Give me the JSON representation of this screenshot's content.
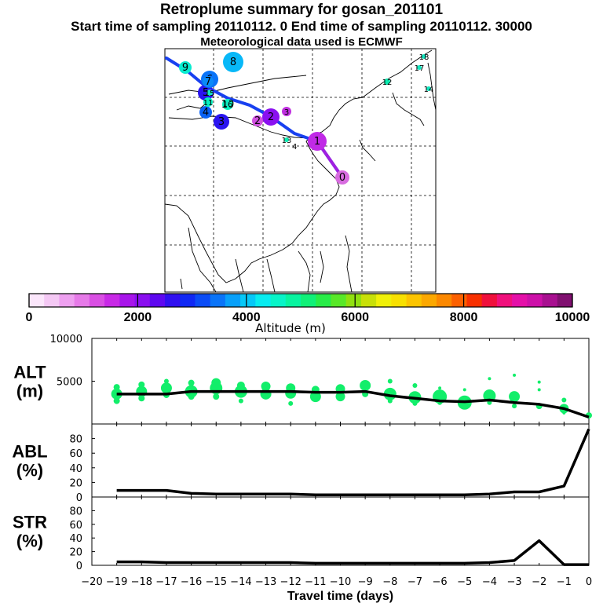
{
  "header": {
    "title": "Retroplume summary for gosan_201101",
    "subtitle": "Start time of sampling 20110112.    0     End time of sampling 20110112. 30000",
    "met": "Meteorological data used is ECMWF"
  },
  "colorbar": {
    "colors": [
      "#fbe6fb",
      "#f4c8f4",
      "#eea0f0",
      "#e67ae8",
      "#d94fe3",
      "#c829e6",
      "#a815ea",
      "#8a0ff0",
      "#5e08f0",
      "#3010f0",
      "#1028f4",
      "#0b4cf6",
      "#0a74f8",
      "#08a0fa",
      "#06c8f8",
      "#08ecf0",
      "#08f4c8",
      "#08f4a0",
      "#10f078",
      "#28ec48",
      "#58e828",
      "#90e010",
      "#c8e008",
      "#f0f008",
      "#f8e000",
      "#fcc400",
      "#fca800",
      "#fc8800",
      "#fc6000",
      "#f83000",
      "#f0103c",
      "#f0107c",
      "#e410a8",
      "#cc10a8",
      "#a81090",
      "#801070"
    ],
    "ticks": [
      "0",
      "2000",
      "4000",
      "6000",
      "8000",
      "10000"
    ],
    "label": "Altitude (m)"
  },
  "map": {
    "clusters": [
      {
        "label": "0",
        "color": "#d86ce0"
      },
      {
        "label": "1",
        "color": "#c02ae6"
      },
      {
        "label": "2",
        "color": "#8a10f0"
      },
      {
        "label": "3",
        "color": "#2a14f0"
      },
      {
        "label": "4",
        "color": "#0a62f6"
      },
      {
        "label": "5",
        "color": "#2a14f0"
      },
      {
        "label": "6",
        "color": "#0a74f8"
      },
      {
        "label": "7",
        "color": "#0a8af8"
      },
      {
        "label": "8",
        "color": "#08b8f8"
      },
      {
        "label": "9",
        "color": "#08ecd0"
      },
      {
        "label": "10",
        "color": "#08f4c0"
      },
      {
        "label": "11",
        "color": "#08f0c0"
      },
      {
        "label": "12",
        "color": "#08ecb0"
      },
      {
        "label": "13",
        "color": "#08ecb0"
      },
      {
        "label": "14",
        "color": "#10e8c0"
      },
      {
        "label": "15",
        "color": "#10e8c0"
      },
      {
        "label": "16",
        "color": "#10e8c0"
      },
      {
        "label": "17",
        "color": "#10e8c0"
      },
      {
        "label": "18",
        "color": "#10e8c0"
      },
      {
        "label": "2",
        "color": "#d050e0"
      },
      {
        "label": "3",
        "color": "#c030e0"
      }
    ]
  },
  "chart_data": [
    {
      "type": "line",
      "panel": "ALT",
      "ylabel": "ALT (m)",
      "ylabel_line1": "ALT",
      "ylabel_line2": "(m)",
      "ylim": [
        0,
        10000
      ],
      "yticks": [
        "5000",
        "10000"
      ],
      "x": [
        -19,
        -18,
        -17,
        -16,
        -15,
        -14,
        -13,
        -12,
        -11,
        -10,
        -9,
        -8,
        -7,
        -6,
        -5,
        -4,
        -3,
        -2,
        -1,
        0
      ],
      "values": [
        3500,
        3500,
        3500,
        3800,
        3800,
        3800,
        3800,
        3800,
        3700,
        3700,
        3800,
        3300,
        3000,
        2700,
        2600,
        2800,
        2500,
        2300,
        1800,
        800
      ],
      "scatter_note": "green cluster altitudes around the mean line",
      "scatter_x": [
        -19,
        -19,
        -19,
        -18,
        -18,
        -18,
        -17,
        -17,
        -17,
        -16,
        -16,
        -16,
        -15,
        -15,
        -15,
        -14,
        -14,
        -14,
        -13,
        -13,
        -12,
        -12,
        -12,
        -11,
        -11,
        -10,
        -10,
        -9,
        -9,
        -8,
        -8,
        -8,
        -7,
        -7,
        -7,
        -6,
        -6,
        -6,
        -5,
        -5,
        -4,
        -4,
        -4,
        -3,
        -3,
        -3,
        -2,
        -2,
        -2,
        -1,
        -1,
        -1,
        0
      ],
      "scatter_y": [
        4300,
        3500,
        2700,
        4600,
        3800,
        3000,
        5000,
        4200,
        3400,
        4800,
        3800,
        3200,
        4800,
        4200,
        3200,
        4500,
        3800,
        2700,
        4400,
        3500,
        4200,
        3600,
        2400,
        4000,
        3200,
        4100,
        3200,
        4500,
        3500,
        5000,
        3500,
        2700,
        4500,
        3100,
        2400,
        4200,
        3200,
        2500,
        4000,
        2500,
        5300,
        3300,
        2500,
        5700,
        3200,
        2100,
        4900,
        4000,
        2100,
        2800,
        1800,
        1300,
        1000
      ],
      "scatter_r": [
        4,
        7,
        4,
        4,
        7,
        4,
        3,
        7,
        4,
        4,
        8,
        4,
        6,
        8,
        4,
        5,
        8,
        3,
        6,
        7,
        6,
        7,
        3,
        5,
        7,
        6,
        6,
        7,
        4,
        3,
        8,
        3,
        3,
        8,
        3,
        2,
        9,
        3,
        2,
        9,
        2,
        8,
        3,
        2,
        7,
        3,
        2,
        2,
        4,
        3,
        6,
        2,
        4
      ]
    },
    {
      "type": "line",
      "panel": "ABL",
      "ylabel": "ABL (%)",
      "ylabel_line1": "ABL",
      "ylabel_line2": "(%)",
      "ylim": [
        0,
        100
      ],
      "yticks": [
        "0",
        "20",
        "40",
        "60",
        "80"
      ],
      "x": [
        -19,
        -18,
        -17,
        -16,
        -15,
        -14,
        -13,
        -12,
        -11,
        -10,
        -9,
        -8,
        -7,
        -6,
        -5,
        -4,
        -3,
        -2,
        -1,
        0
      ],
      "values": [
        9,
        9,
        9,
        5,
        4,
        4,
        4,
        4,
        3,
        3,
        3,
        3,
        3,
        3,
        3,
        4,
        7,
        7,
        15,
        93
      ]
    },
    {
      "type": "line",
      "panel": "STR",
      "ylabel": "STR (%)",
      "ylabel_line1": "STR",
      "ylabel_line2": "(%)",
      "ylim": [
        0,
        100
      ],
      "yticks": [
        "0",
        "20",
        "40",
        "60",
        "80"
      ],
      "x": [
        -19,
        -18,
        -17,
        -16,
        -15,
        -14,
        -13,
        -12,
        -11,
        -10,
        -9,
        -8,
        -7,
        -6,
        -5,
        -4,
        -3,
        -2,
        -1,
        0
      ],
      "values": [
        5,
        5,
        4,
        4,
        4,
        4,
        4,
        4,
        3,
        3,
        3,
        3,
        3,
        3,
        3,
        4,
        7,
        36,
        1,
        1
      ],
      "xlabel": "Travel time (days)",
      "xticks": [
        "−20",
        "−19",
        "−18",
        "−17",
        "−16",
        "−15",
        "−14",
        "−13",
        "−12",
        "−11",
        "−10",
        "−9",
        "−8",
        "−7",
        "−6",
        "−5",
        "−4",
        "−3",
        "−2",
        "−1",
        "0"
      ]
    }
  ]
}
